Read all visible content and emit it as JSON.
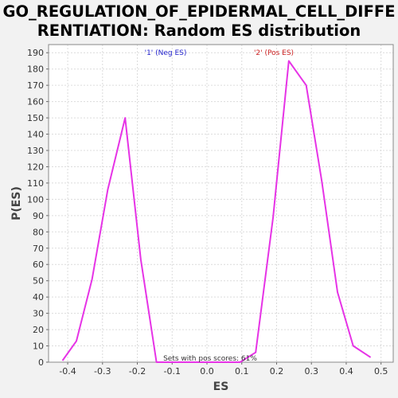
{
  "title_line1": "GO_REGULATION_OF_EPIDERMAL_CELL_DIFFE",
  "title_line2": "RENTIATION: Random ES distribution",
  "chart_data": {
    "type": "line",
    "xlabel": "ES",
    "ylabel": "P(ES)",
    "xlim": [
      -0.455,
      0.535
    ],
    "ylim": [
      0,
      195
    ],
    "xticks": [
      -0.4,
      -0.3,
      -0.2,
      -0.1,
      0.0,
      0.1,
      0.2,
      0.3,
      0.4,
      0.5
    ],
    "xtick_labels": [
      "-0.4",
      "-0.3",
      "-0.2",
      "-0.1",
      "0.0",
      "0.1",
      "0.2",
      "0.3",
      "0.4",
      "0.5"
    ],
    "yticks": [
      0,
      10,
      20,
      30,
      40,
      50,
      60,
      70,
      80,
      90,
      100,
      110,
      120,
      130,
      140,
      150,
      160,
      170,
      180,
      190
    ],
    "grid": true,
    "line_color": "#e633e6",
    "series": [
      {
        "x": [
          -0.415,
          -0.375,
          -0.33,
          -0.285,
          -0.235,
          -0.19,
          -0.145,
          -0.1,
          -0.055,
          0.0,
          0.05,
          0.095,
          0.14,
          0.19,
          0.235,
          0.285,
          0.33,
          0.375,
          0.42,
          0.47
        ],
        "y": [
          1,
          13,
          51,
          106,
          150,
          63,
          0,
          0,
          0,
          0,
          0,
          0,
          6,
          89,
          185,
          170,
          111,
          43,
          10,
          3
        ]
      }
    ],
    "annotations": [
      {
        "text": "'1' (Neg ES)",
        "color": "#2222cc"
      },
      {
        "text": "'2' (Pos ES)",
        "color": "#cc2222"
      },
      {
        "text": "Sets with pos scores: 61%",
        "color": "#333333"
      }
    ]
  }
}
